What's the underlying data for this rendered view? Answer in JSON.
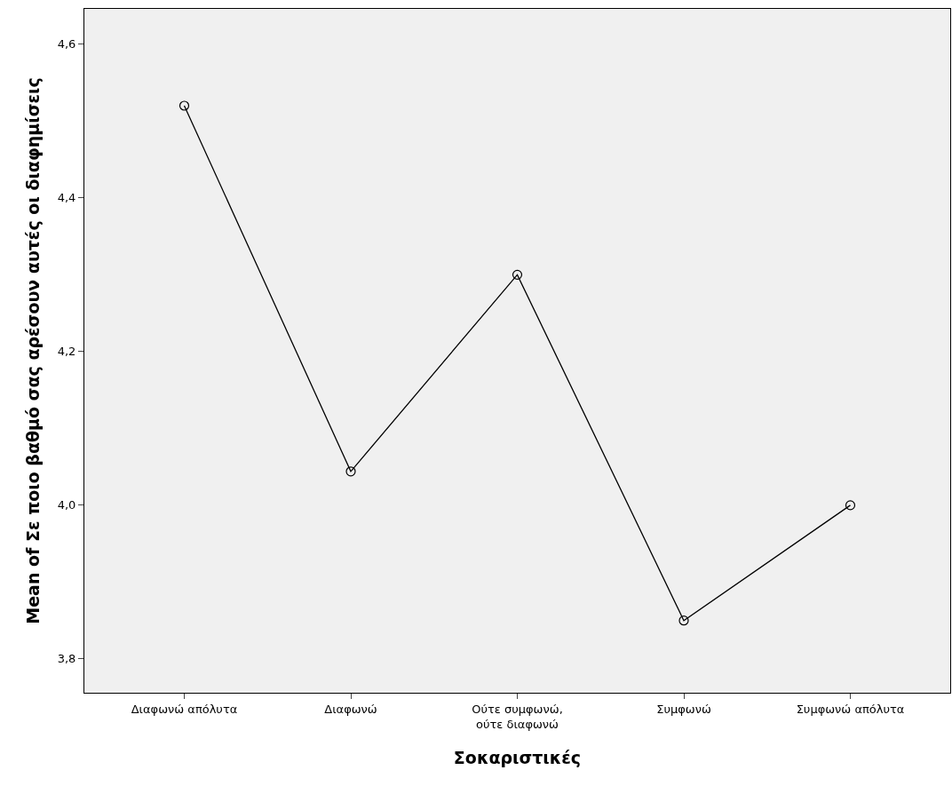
{
  "chart_data": {
    "type": "line",
    "xlabel": "Σοκαριστικές",
    "ylabel": "Mean of Σε ποιο βαθμό σας αρέσουν αυτές οι διαφημίσεις",
    "categories": [
      "Διαφωνώ απόλυτα",
      "Διαφωνώ",
      "Ούτε συμφωνώ,\nούτε διαφωνώ",
      "Συμφωνώ",
      "Συμφωνώ απόλυτα"
    ],
    "series": [
      {
        "color": "#000000",
        "values": [
          4.52,
          4.044,
          4.3,
          3.85,
          4.0
        ]
      }
    ],
    "ylim": [
      3.756,
      4.646
    ],
    "yticks": [
      {
        "value": 3.8,
        "label": "3,8"
      },
      {
        "value": 4.0,
        "label": "4,0"
      },
      {
        "value": 4.2,
        "label": "4,2"
      },
      {
        "value": 4.4,
        "label": "4,4"
      },
      {
        "value": 4.6,
        "label": "4,6"
      }
    ],
    "marker": "circle",
    "line_style": "solid",
    "grid": false
  }
}
